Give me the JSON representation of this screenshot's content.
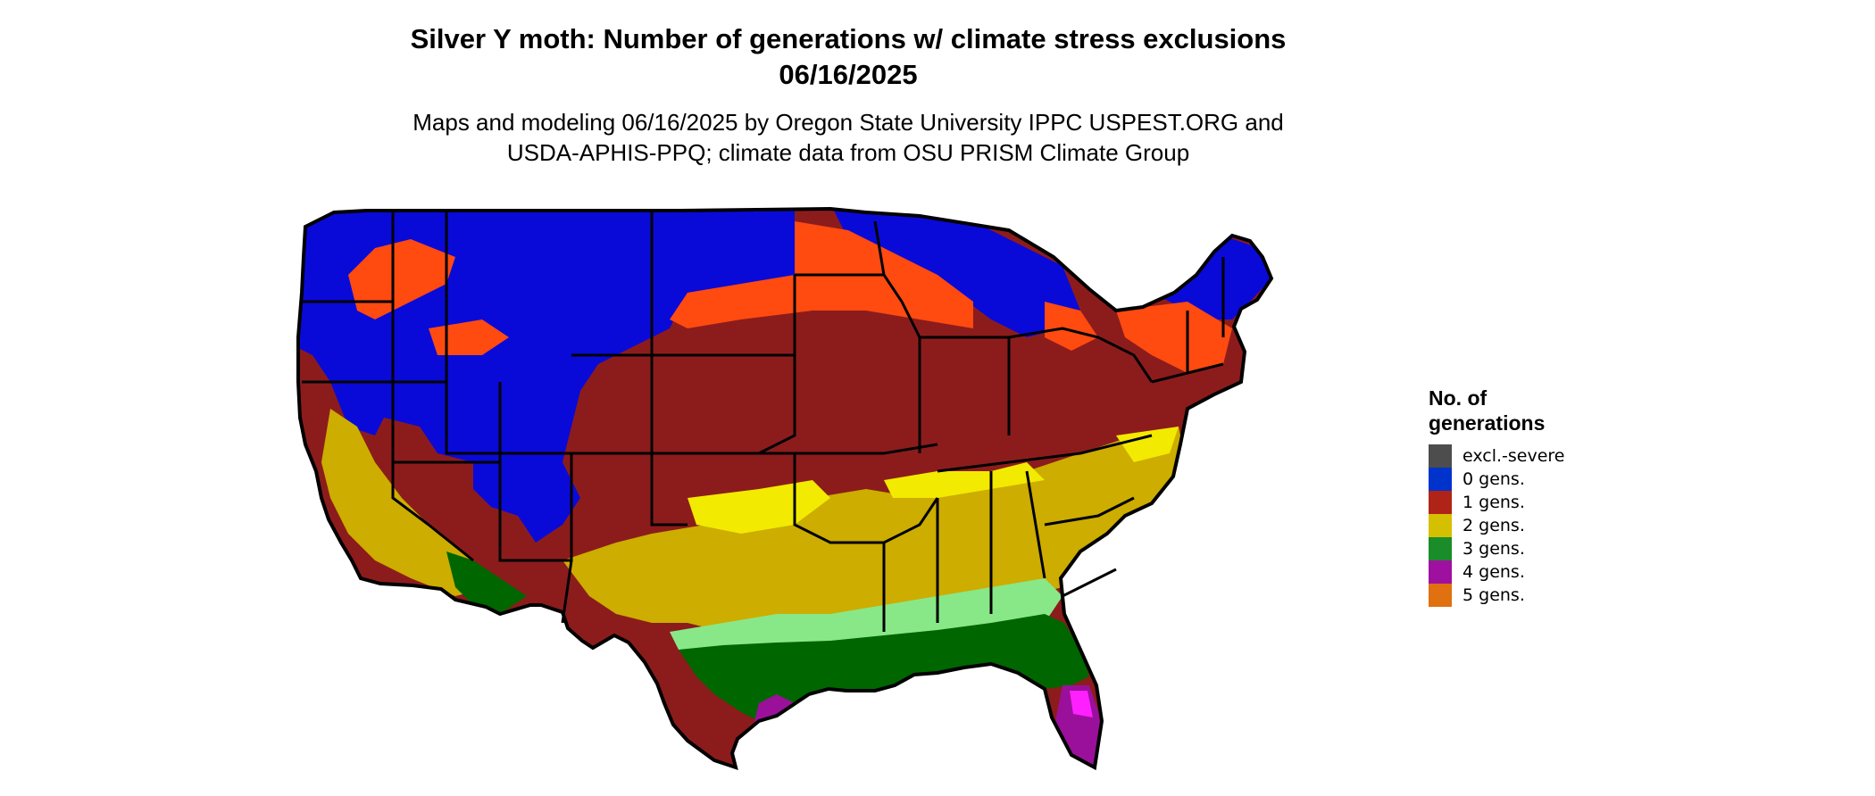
{
  "title": {
    "line1": "Silver Y moth: Number of generations w/ climate stress exclusions",
    "line2": "06/16/2025"
  },
  "subtitle": {
    "line1": "Maps and modeling 06/16/2025 by Oregon State University IPPC USPEST.ORG and",
    "line2": "USDA-APHIS-PPQ; climate data from OSU PRISM Climate Group"
  },
  "legend": {
    "title": "No. of\ngenerations",
    "items": [
      {
        "label": "excl.-severe",
        "color": "#4d4d4d"
      },
      {
        "label": "0 gens.",
        "color": "#0033cc"
      },
      {
        "label": "1 gens.",
        "color": "#b02418"
      },
      {
        "label": "2 gens.",
        "color": "#d4c000"
      },
      {
        "label": "3 gens.",
        "color": "#1a8c2a"
      },
      {
        "label": "4 gens.",
        "color": "#a010a0"
      },
      {
        "label": "5 gens.",
        "color": "#e07010"
      }
    ]
  },
  "map": {
    "region": "contiguous-united-states",
    "zone_colors": {
      "zero": "#0a0ad8",
      "one_light": "#ff4a10",
      "one": "#8c1c1c",
      "two_light": "#f2ea00",
      "two": "#ccad00",
      "three_light": "#88e888",
      "three": "#006600",
      "four_light": "#ff20ff",
      "four": "#9a109a",
      "five": "#e07010"
    }
  }
}
